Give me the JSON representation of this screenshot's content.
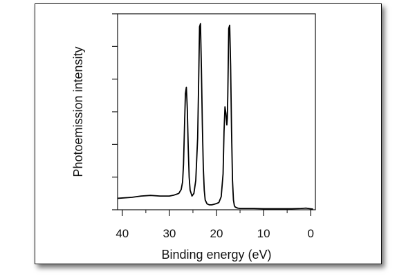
{
  "chart_data": {
    "type": "line",
    "xlabel": "Binding energy (eV)",
    "ylabel": "Photoemission intensity",
    "xlim": [
      41,
      -1
    ],
    "ylim": [
      0,
      6
    ],
    "x_reversed": true,
    "x_ticks": [
      40,
      30,
      20,
      10,
      0
    ],
    "y_ticks": [
      0,
      1,
      2,
      3,
      4,
      5,
      6
    ],
    "y_tick_labels_shown": false,
    "grid": false,
    "legend": "none",
    "line_color": "#000000",
    "series": [
      {
        "x": [
          41,
          40,
          38,
          36,
          34,
          32,
          30,
          29,
          28,
          27.5,
          27.2,
          27.0,
          26.8,
          26.6,
          26.4,
          26.2,
          26.0,
          25.8,
          25.6,
          25.2,
          24.8,
          24.4,
          24.0,
          23.8,
          23.6,
          23.4,
          23.2,
          23.0,
          22.8,
          22.6,
          22.4,
          22.0,
          21.5,
          21.0,
          20.5,
          20.0,
          19.5,
          19.0,
          18.6,
          18.4,
          18.2,
          18.0,
          17.8,
          17.7,
          17.6,
          17.4,
          17.2,
          17.0,
          16.8,
          16.6,
          16.4,
          16.2,
          16.0,
          15.5,
          15.0,
          14.0,
          12.0,
          10.0,
          8.0,
          6.0,
          4.0,
          2.0,
          1.0,
          0.0,
          -0.5
        ],
        "y": [
          0.35,
          0.36,
          0.38,
          0.42,
          0.44,
          0.42,
          0.42,
          0.45,
          0.5,
          0.62,
          0.85,
          1.4,
          2.5,
          3.55,
          3.75,
          3.1,
          1.9,
          1.0,
          0.6,
          0.42,
          0.5,
          0.9,
          2.2,
          3.8,
          5.6,
          5.7,
          4.3,
          2.6,
          1.3,
          0.6,
          0.3,
          0.18,
          0.15,
          0.15,
          0.17,
          0.19,
          0.22,
          0.4,
          1.1,
          2.4,
          3.15,
          2.95,
          2.6,
          2.8,
          3.5,
          5.55,
          5.65,
          4.4,
          2.4,
          0.9,
          0.3,
          0.12,
          0.08,
          0.05,
          0.04,
          0.04,
          0.04,
          0.03,
          0.03,
          0.03,
          0.03,
          0.04,
          0.05,
          0.03,
          0.02
        ]
      }
    ]
  }
}
